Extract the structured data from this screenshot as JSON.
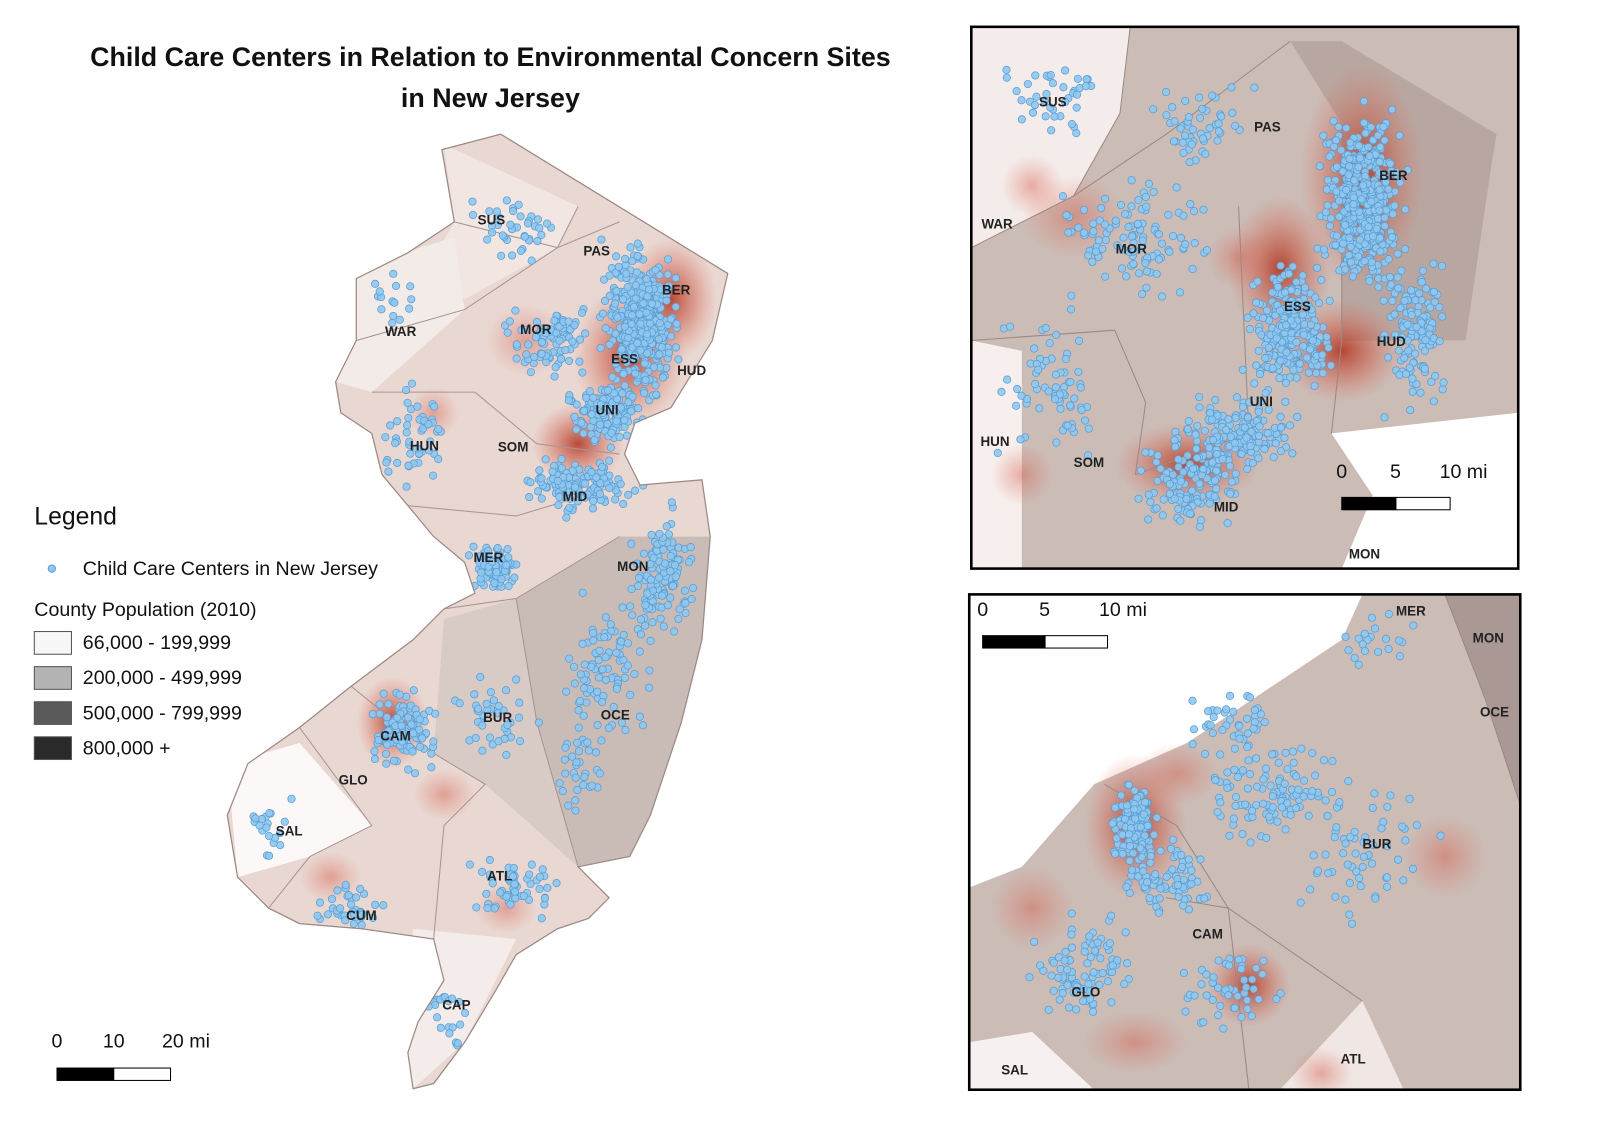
{
  "title_lines": [
    "Child Care Centers in Relation to Environmental Concern Sites",
    "in New Jersey"
  ],
  "main_map": {
    "county_labels": [
      "SUS",
      "PAS",
      "BER",
      "WAR",
      "MOR",
      "ESS",
      "HUD",
      "UNI",
      "HUN",
      "SOM",
      "MID",
      "MER",
      "MON",
      "BUR",
      "OCE",
      "CAM",
      "GLO",
      "SAL",
      "ATL",
      "CUM",
      "CAP"
    ],
    "scale_labels": [
      "0",
      "10",
      "20 mi"
    ]
  },
  "legend": {
    "title": "Legend",
    "point_label": "Child Care Centers in New Jersey",
    "population_title": "County Population (2010)",
    "classes": [
      {
        "label": "66,000 - 199,999",
        "color": "#f7f7f7"
      },
      {
        "label": "200,000 - 499,999",
        "color": "#b3b3b3"
      },
      {
        "label": "500,000 - 799,999",
        "color": "#5a5a5a"
      },
      {
        "label": "800,000 +",
        "color": "#2a2a2a"
      }
    ]
  },
  "inset_north": {
    "county_labels": [
      "SUS",
      "PAS",
      "BER",
      "WAR",
      "MOR",
      "ESS",
      "HUD",
      "UNI",
      "HUN",
      "SOM",
      "MID",
      "MON"
    ],
    "scale_labels": [
      "0",
      "5",
      "10 mi"
    ]
  },
  "inset_south": {
    "county_labels": [
      "MER",
      "MON",
      "OCE",
      "BUR",
      "CAM",
      "GLO",
      "ATL",
      "SAL"
    ],
    "scale_labels": [
      "0",
      "5",
      "10 mi"
    ]
  }
}
